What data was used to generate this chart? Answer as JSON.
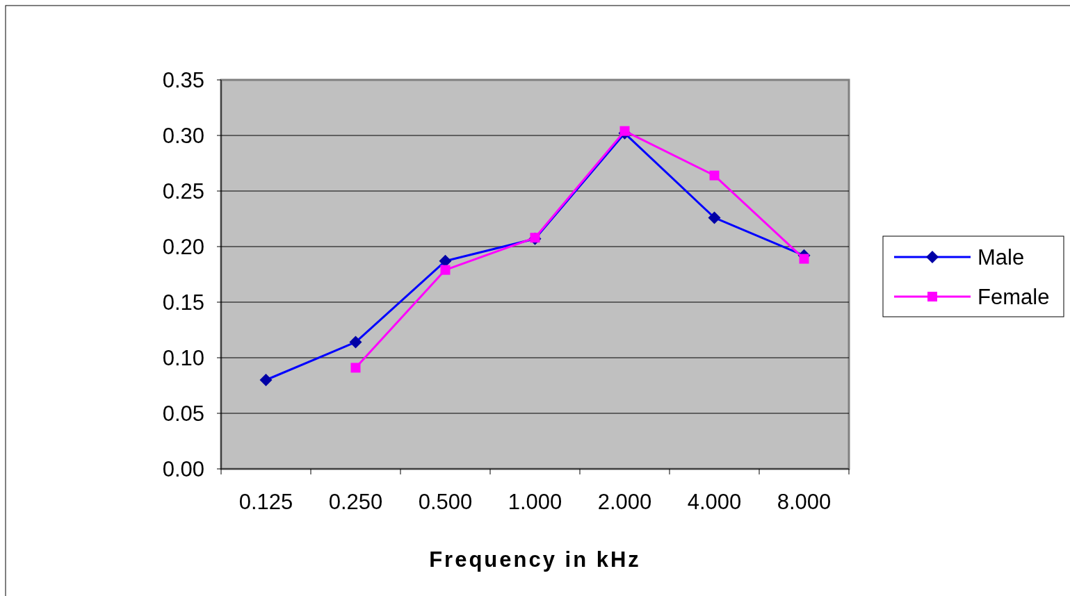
{
  "chart_data": {
    "type": "line",
    "xlabel": "Frequency in kHz",
    "categories": [
      "0.125",
      "0.250",
      "0.500",
      "1.000",
      "2.000",
      "4.000",
      "8.000"
    ],
    "series": [
      {
        "name": "Male",
        "color": "#0000ff",
        "marker": "diamond",
        "values": [
          0.08,
          0.114,
          0.187,
          0.207,
          0.302,
          0.226,
          0.192
        ]
      },
      {
        "name": "Female",
        "color": "#ff00ff",
        "marker": "square",
        "values": [
          null,
          0.091,
          0.179,
          0.208,
          0.304,
          0.264,
          0.189
        ]
      }
    ],
    "ylim": [
      0,
      0.35
    ],
    "yticks": [
      {
        "value": 0,
        "label": "0.00"
      },
      {
        "value": 0.05,
        "label": "0.05"
      },
      {
        "value": 0.1,
        "label": "0.10"
      },
      {
        "value": 0.15,
        "label": "0.15"
      },
      {
        "value": 0.2,
        "label": "0.20"
      },
      {
        "value": 0.25,
        "label": "0.25"
      },
      {
        "value": 0.3,
        "label": "0.30"
      },
      {
        "value": 0.35,
        "label": "0.35"
      }
    ],
    "grid": "y",
    "legend": "right"
  }
}
